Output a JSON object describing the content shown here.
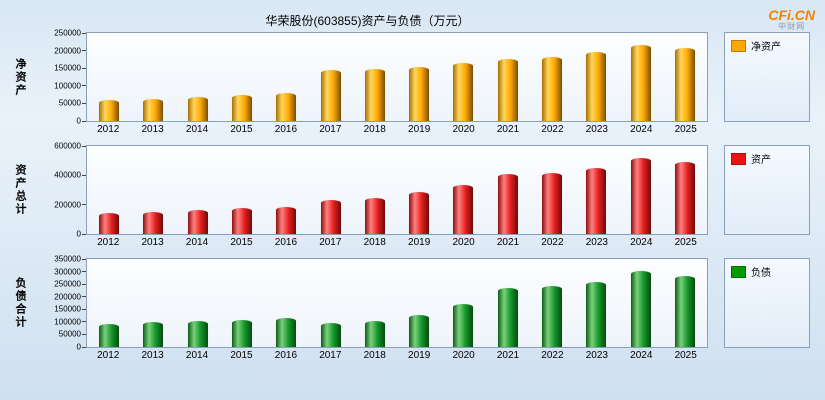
{
  "header": {
    "title": "华荣股份(603855)资产与负债（万元）",
    "logo": "CFi.CN",
    "logo_sub": "中财网"
  },
  "chart_data": [
    {
      "type": "bar",
      "id": "net-assets",
      "ylabel": "净资产",
      "legend_label": "净资产",
      "color": "#FFA800",
      "bar_gradient": [
        "#a86f00",
        "#ffd75e",
        "#ffaa00",
        "#7a4e00"
      ],
      "categories": [
        "2012",
        "2013",
        "2014",
        "2015",
        "2016",
        "2017",
        "2018",
        "2019",
        "2020",
        "2021",
        "2022",
        "2023",
        "2024",
        "2025"
      ],
      "values": [
        60000,
        62000,
        68000,
        75000,
        81000,
        145000,
        147000,
        154000,
        164000,
        176000,
        181000,
        196000,
        217000,
        208000
      ],
      "ylim": [
        0,
        250000
      ],
      "yticks": [
        0,
        50000,
        100000,
        150000,
        200000,
        250000
      ],
      "grid": false,
      "legend_position": "right"
    },
    {
      "type": "bar",
      "id": "total-assets",
      "ylabel": "资产总计",
      "legend_label": "资产",
      "color": "#EE1111",
      "bar_gradient": [
        "#8f0f0f",
        "#ff8080",
        "#e82020",
        "#6e0a0a"
      ],
      "categories": [
        "2012",
        "2013",
        "2014",
        "2015",
        "2016",
        "2017",
        "2018",
        "2019",
        "2020",
        "2021",
        "2022",
        "2023",
        "2024",
        "2025"
      ],
      "values": [
        140000,
        151000,
        164000,
        178000,
        183000,
        229000,
        243000,
        289000,
        333000,
        408000,
        419000,
        452000,
        521000,
        489000
      ],
      "ylim": [
        0,
        600000
      ],
      "yticks": [
        0,
        200000,
        400000,
        600000
      ],
      "grid": false,
      "legend_position": "right"
    },
    {
      "type": "bar",
      "id": "total-liabilities",
      "ylabel": "负债合计",
      "legend_label": "负债",
      "color": "#009900",
      "bar_gradient": [
        "#0b5e14",
        "#7cd07c",
        "#15992b",
        "#084a10"
      ],
      "categories": [
        "2012",
        "2013",
        "2014",
        "2015",
        "2016",
        "2017",
        "2018",
        "2019",
        "2020",
        "2021",
        "2022",
        "2023",
        "2024",
        "2025"
      ],
      "values": [
        93000,
        99000,
        104000,
        109000,
        114000,
        94000,
        104000,
        129000,
        173000,
        233000,
        241000,
        259000,
        303000,
        281000
      ],
      "ylim": [
        0,
        350000
      ],
      "yticks": [
        0,
        50000,
        100000,
        150000,
        200000,
        250000,
        300000,
        350000
      ],
      "grid": false,
      "legend_position": "right"
    }
  ]
}
